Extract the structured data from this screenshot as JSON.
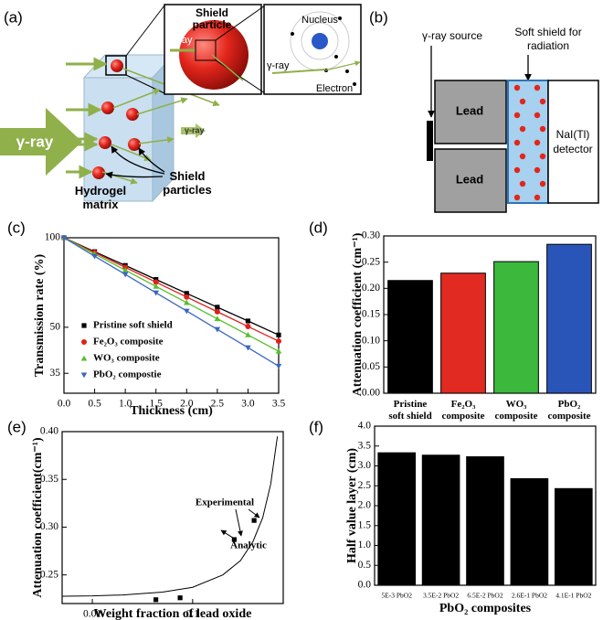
{
  "panel_a": {
    "label": "(a)",
    "shield_particle": [
      "Shield",
      "particle"
    ],
    "gamma_ray_zoom": "γ-ray",
    "gamma_ray_atom": "γ-ray",
    "nucleus": "Nucleus",
    "electron": "Electron",
    "gamma_ray_in": "γ-ray",
    "gamma_ray_out": "γ-ray",
    "shield_particles": [
      "Shield",
      "particles"
    ],
    "hydrogel_matrix": [
      "Hydrogel",
      "matrix"
    ]
  },
  "panel_b": {
    "label": "(b)",
    "source": "γ-ray source",
    "soft_shield": [
      "Soft shield for",
      "radiation"
    ],
    "lead": [
      "Lead",
      "Lead"
    ],
    "detector": [
      "NaI(Tl)",
      "detector"
    ]
  },
  "chart_data": [
    {
      "type": "line",
      "label": "(c)",
      "x_label": "Thickness (cm)",
      "y_label": "Transmission rate (%)",
      "ylog": true,
      "x": [
        0,
        0.5,
        1,
        1.5,
        2,
        2.5,
        3,
        3.5
      ],
      "series": [
        {
          "name": "Pristine soft shield",
          "color": "#000000",
          "marker": "square",
          "values": [
            100,
            89.8,
            80.7,
            72.4,
            65.0,
            58.4,
            52.5,
            47.1
          ]
        },
        {
          "name": "Fe₂O₃ composite",
          "color": "#e0201b",
          "marker": "circle",
          "values": [
            100,
            89.2,
            79.5,
            70.9,
            63.2,
            56.4,
            50.3,
            44.9
          ]
        },
        {
          "name": "WO₃ composite",
          "color": "#55c02a",
          "marker": "triangle-up",
          "values": [
            100,
            88.2,
            77.8,
            68.6,
            60.5,
            53.4,
            47.1,
            41.5
          ]
        },
        {
          "name": "PbO₂ compostie",
          "color": "#3a66c4",
          "marker": "triangle-down",
          "values": [
            100,
            86.7,
            75.3,
            65.3,
            56.7,
            49.2,
            42.7,
            37.0
          ]
        }
      ],
      "xlim": [
        0,
        3.5
      ],
      "xticks": [
        {
          "value": 0,
          "label": "0.0"
        },
        0.5,
        {
          "value": 1,
          "label": "1.0"
        },
        1.5,
        {
          "value": 2,
          "label": "2.0"
        },
        2.5,
        {
          "value": 3,
          "label": "3.0"
        },
        3.5
      ],
      "ylim": [
        30,
        100
      ],
      "yticks": [
        35,
        50,
        100
      ]
    },
    {
      "type": "bar",
      "label": "(d)",
      "y_label": "Attenuation coefficient (cm⁻¹)",
      "categories": [
        [
          "Pristine",
          "soft shield"
        ],
        [
          "Fe₂O₃",
          "composite"
        ],
        [
          "WO₃",
          "composite"
        ],
        [
          "PbO₂",
          "composite"
        ]
      ],
      "values": [
        0.215,
        0.229,
        0.251,
        0.284
      ],
      "colors": [
        "#000000",
        "#e02a22",
        "#3cb83c",
        "#2a55b8"
      ],
      "ylim": [
        0,
        0.3
      ],
      "yticks": [
        {
          "value": 0,
          "label": "0.00"
        },
        0.05,
        {
          "value": 0.1,
          "label": "0.10"
        },
        0.15,
        {
          "value": 0.2,
          "label": "0.20"
        },
        0.25,
        {
          "value": 0.3,
          "label": "0.30"
        }
      ]
    },
    {
      "type": "scatter",
      "label": "(e)",
      "x_label": "Weight fraction of lead oxide",
      "y_label": "Attenuation coefficient(cm⁻¹)",
      "xlog": true,
      "series": [
        {
          "name": "Experimental",
          "style": "markers",
          "color": "#000000",
          "x": [
            0.043,
            0.075,
            0.26,
            0.41
          ],
          "values": [
            0.224,
            0.226,
            0.287,
            0.307
          ]
        },
        {
          "name": "Analytic",
          "style": "line",
          "color": "#000000",
          "x": [
            0.005,
            0.01,
            0.02,
            0.05,
            0.1,
            0.2,
            0.3,
            0.4,
            0.5,
            0.6,
            0.7
          ],
          "values": [
            0.2277,
            0.228,
            0.229,
            0.232,
            0.237,
            0.25,
            0.265,
            0.285,
            0.31,
            0.345,
            0.395
          ]
        }
      ],
      "xlim": [
        0.005,
        0.8
      ],
      "xticks": [
        0.01,
        0.1
      ],
      "ylim": [
        0.22,
        0.4
      ],
      "yticks": [
        0.25,
        {
          "value": 0.3,
          "label": "0.30"
        },
        0.35,
        {
          "value": 0.4,
          "label": "0.40"
        }
      ]
    },
    {
      "type": "bar",
      "label": "(f)",
      "x_label": "PbO₂ composites",
      "y_label": "Half value layer (cm)",
      "categories": [
        "5E-3 PbO2",
        "3.5E-2 PbO2",
        "6.5E-2 PbO2",
        "2.6E-1 PbO2",
        "4.1E-1 PbO2"
      ],
      "values": [
        3.33,
        3.27,
        3.23,
        2.68,
        2.43
      ],
      "colors": [
        "#000000",
        "#000000",
        "#000000",
        "#000000",
        "#000000"
      ],
      "ylim": [
        0,
        4
      ],
      "yticks": [
        {
          "value": 0,
          "label": "0.0"
        },
        0.5,
        {
          "value": 1,
          "label": "1.0"
        },
        1.5,
        {
          "value": 2,
          "label": "2.0"
        },
        2.5,
        {
          "value": 3,
          "label": "3.0"
        },
        3.5,
        {
          "value": 4,
          "label": "4.0"
        }
      ]
    }
  ]
}
